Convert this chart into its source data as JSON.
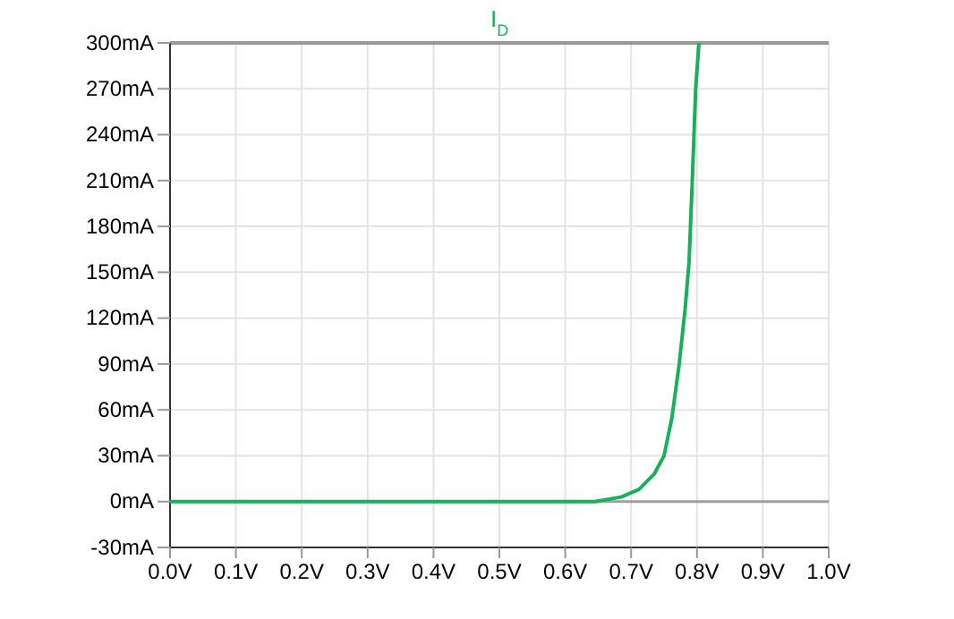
{
  "chart_data": {
    "type": "line",
    "title": "I$_{D}$",
    "x": [
      0,
      0.1,
      0.2,
      0.3,
      0.4,
      0.5,
      0.6,
      0.645,
      0.685,
      0.712,
      0.735,
      0.75,
      0.762,
      0.773,
      0.782,
      0.788,
      0.793,
      0.798,
      0.803
    ],
    "series": [
      {
        "color": "#1aaf5d",
        "values": [
          0,
          0,
          0,
          0,
          0,
          0,
          0,
          0,
          3,
          8,
          18,
          30,
          55,
          90,
          126,
          157,
          211,
          270,
          300
        ]
      }
    ],
    "xlim": [
      0,
      1
    ],
    "ylim": [
      -30,
      300
    ],
    "xticks": [
      {
        "value": 0,
        "label": "0.0V"
      },
      {
        "value": 0.1,
        "label": "0.1V"
      },
      {
        "value": 0.2,
        "label": "0.2V"
      },
      {
        "value": 0.3,
        "label": "0.3V"
      },
      {
        "value": 0.4,
        "label": "0.4V"
      },
      {
        "value": 0.5,
        "label": "0.5V"
      },
      {
        "value": 0.6,
        "label": "0.6V"
      },
      {
        "value": 0.7,
        "label": "0.7V"
      },
      {
        "value": 0.8,
        "label": "0.8V"
      },
      {
        "value": 0.9,
        "label": "0.9V"
      },
      {
        "value": 1,
        "label": "1.0V"
      }
    ],
    "yticks": [
      {
        "value": -30,
        "label": "-30mA"
      },
      {
        "value": 0,
        "label": "0mA"
      },
      {
        "value": 30,
        "label": "30mA"
      },
      {
        "value": 60,
        "label": "60mA"
      },
      {
        "value": 90,
        "label": "90mA"
      },
      {
        "value": 120,
        "label": "120mA"
      },
      {
        "value": 150,
        "label": "150mA"
      },
      {
        "value": 180,
        "label": "180mA"
      },
      {
        "value": 210,
        "label": "210mA"
      },
      {
        "value": 240,
        "label": "240mA"
      },
      {
        "value": 270,
        "label": "270mA"
      },
      {
        "value": 300,
        "label": "300mA"
      }
    ],
    "grid": true,
    "marker": "none",
    "line_style": "solid",
    "ref_lines": [
      {
        "axis": "y",
        "value": 0,
        "color": "#a0a0a0"
      }
    ]
  }
}
